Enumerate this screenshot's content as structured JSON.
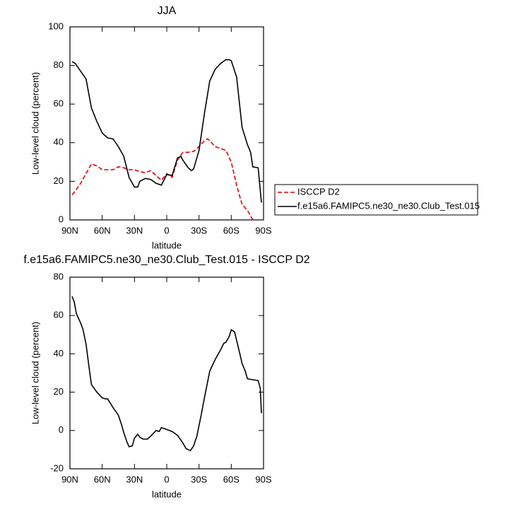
{
  "chart_data": [
    {
      "type": "line",
      "title": "JJA",
      "x_label": "latitude",
      "y_label": "Low-level cloud (percent)",
      "xlim": [
        90,
        -90
      ],
      "xticks": [
        {
          "value": 90,
          "label": "90N"
        },
        {
          "value": 60,
          "label": "60N"
        },
        {
          "value": 30,
          "label": "30N"
        },
        0,
        {
          "value": -30,
          "label": "30S"
        },
        {
          "value": -60,
          "label": "60S"
        },
        {
          "value": -90,
          "label": "90S"
        }
      ],
      "ylim": [
        0,
        100
      ],
      "yticks": [
        0,
        20,
        40,
        60,
        80,
        100
      ],
      "legend": "right-outside",
      "series": [
        {
          "name": "ISCCP D2",
          "color": "#e00000",
          "dashed": true,
          "x": [
            88,
            85,
            80,
            75,
            70,
            65,
            60,
            55,
            50,
            45,
            40,
            35,
            30,
            25,
            20,
            15,
            10,
            5,
            0,
            -5,
            -10,
            -15,
            -20,
            -25,
            -30,
            -35,
            -38,
            -40,
            -45,
            -50,
            -55,
            -60,
            -65,
            -70,
            -75,
            -80
          ],
          "values": [
            13,
            15,
            19,
            24,
            29,
            28,
            26,
            26,
            26,
            27.5,
            27,
            26,
            26,
            25,
            24.5,
            25.5,
            23,
            20.5,
            24,
            22,
            31,
            35,
            35,
            35.5,
            38,
            41,
            42,
            41,
            38,
            37,
            36,
            30,
            18,
            8,
            5,
            0
          ]
        },
        {
          "name": "f.e15a6.FAMIPC5.ne30_ne30.Club_Test.015",
          "color": "#000000",
          "dashed": false,
          "x": [
            88,
            85,
            80,
            75,
            70,
            65,
            60,
            55,
            50,
            45,
            40,
            35,
            30,
            27,
            25,
            20,
            15,
            10,
            5,
            0,
            -5,
            -10,
            -13,
            -15,
            -20,
            -23,
            -25,
            -30,
            -35,
            -40,
            -45,
            -50,
            -55,
            -58,
            -60,
            -65,
            -70,
            -75,
            -78,
            -80,
            -85,
            -88
          ],
          "values": [
            82,
            81,
            77,
            73,
            58,
            51,
            45,
            42.5,
            42,
            38,
            33,
            22,
            17,
            17,
            20,
            21.5,
            21,
            19,
            18,
            23.5,
            23,
            32,
            33,
            31,
            27,
            25.5,
            26.5,
            36,
            55,
            72,
            78,
            81,
            83,
            83,
            82.5,
            74,
            48,
            39,
            35,
            27.5,
            27,
            9
          ]
        }
      ]
    },
    {
      "type": "line",
      "title": "f.e15a6.FAMIPC5.ne30_ne30.Club_Test.015 - ISCCP D2",
      "x_label": "latitude",
      "y_label": "Low-level cloud (percent)",
      "xlim": [
        90,
        -90
      ],
      "xticks": [
        {
          "value": 90,
          "label": "90N"
        },
        {
          "value": 60,
          "label": "60N"
        },
        {
          "value": 30,
          "label": "30N"
        },
        0,
        {
          "value": -30,
          "label": "30S"
        },
        {
          "value": -60,
          "label": "60S"
        },
        {
          "value": -90,
          "label": "90S"
        }
      ],
      "ylim": [
        -20,
        80
      ],
      "yticks": [
        -20,
        0,
        20,
        40,
        60,
        80
      ],
      "series": [
        {
          "color": "#000000",
          "dashed": false,
          "x": [
            88,
            86,
            84,
            80,
            78,
            75,
            72,
            70,
            65,
            60,
            57,
            55,
            50,
            45,
            42,
            40,
            37,
            35,
            32,
            30,
            27,
            25,
            22,
            18,
            15,
            10,
            7,
            5,
            0,
            -5,
            -10,
            -15,
            -18,
            -22,
            -25,
            -28,
            -32,
            -35,
            -40,
            -45,
            -50,
            -53,
            -55,
            -58,
            -60,
            -63,
            -65,
            -68,
            -70,
            -73,
            -75,
            -80,
            -85,
            -87,
            -88
          ],
          "values": [
            70,
            67,
            61,
            56,
            53,
            45,
            32,
            24,
            20,
            17,
            16.5,
            16.5,
            12,
            8,
            3,
            -1,
            -6,
            -8.5,
            -8,
            -4,
            -2,
            -3.5,
            -4.5,
            -4.5,
            -3,
            0,
            -0.5,
            1.5,
            0.5,
            -0.5,
            -2.5,
            -6.5,
            -9.5,
            -10.5,
            -8,
            -3,
            8,
            17,
            31,
            37,
            42,
            45.5,
            46,
            49,
            52.5,
            51.5,
            47,
            40,
            35,
            31,
            27,
            26.5,
            26,
            22,
            9
          ]
        }
      ]
    }
  ]
}
